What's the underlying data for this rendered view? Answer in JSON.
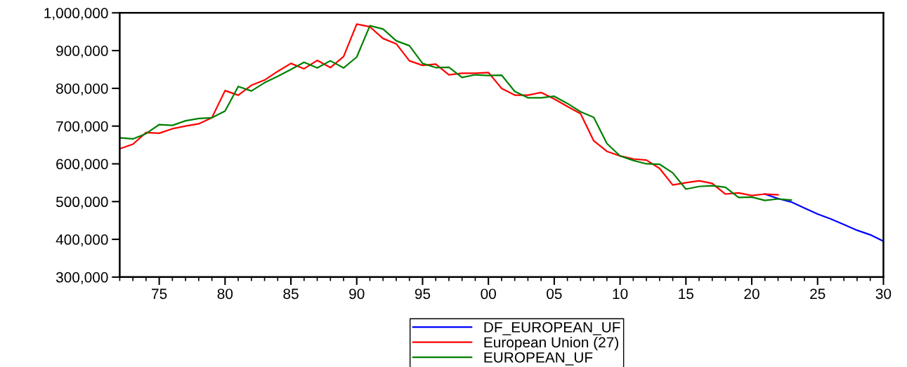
{
  "chart_data": {
    "type": "line",
    "x": [
      1972,
      1973,
      1974,
      1975,
      1976,
      1977,
      1978,
      1979,
      1980,
      1981,
      1982,
      1983,
      1984,
      1985,
      1986,
      1987,
      1988,
      1989,
      1990,
      1991,
      1992,
      1993,
      1994,
      1995,
      1996,
      1997,
      1998,
      1999,
      2000,
      2001,
      2002,
      2003,
      2004,
      2005,
      2006,
      2007,
      2008,
      2009,
      2010,
      2011,
      2012,
      2013,
      2014,
      2015,
      2016,
      2017,
      2018,
      2019,
      2020,
      2021,
      2022,
      2023
    ],
    "series": [
      {
        "name": "DF_EUROPEAN_UF",
        "color": "#0000ff",
        "x": [
          2021,
          2022,
          2023,
          2024,
          2025,
          2026,
          2027,
          2028,
          2029,
          2030
        ],
        "values": [
          520000,
          508000,
          499000,
          483000,
          467000,
          454000,
          439000,
          424000,
          412000,
          395000
        ]
      },
      {
        "name": "European Union (27)",
        "color": "#ff0000",
        "values": [
          640000,
          652000,
          683000,
          681000,
          693000,
          700000,
          706000,
          722000,
          794000,
          782000,
          808000,
          822000,
          845000,
          866000,
          852000,
          874000,
          855000,
          884000,
          970000,
          963000,
          932000,
          918000,
          873000,
          861000,
          864000,
          836000,
          840000,
          840000,
          842000,
          800000,
          782000,
          782000,
          789000,
          772000,
          752000,
          733000,
          661000,
          633000,
          621000,
          613000,
          610000,
          588000,
          544000,
          550000,
          555000,
          548000,
          520000,
          523000,
          516000,
          520000,
          518000,
          null
        ]
      },
      {
        "name": "EUROPEAN_UF",
        "color": "#008000",
        "values": [
          669000,
          666000,
          680000,
          704000,
          702000,
          714000,
          720000,
          722000,
          740000,
          805000,
          793000,
          815000,
          832000,
          850000,
          869000,
          854000,
          873000,
          854000,
          883000,
          966000,
          957000,
          926000,
          913000,
          866000,
          855000,
          856000,
          829000,
          836000,
          834000,
          835000,
          792000,
          775000,
          775000,
          779000,
          760000,
          738000,
          723000,
          654000,
          621000,
          609000,
          600000,
          599000,
          576000,
          533000,
          540000,
          542000,
          538000,
          511000,
          512000,
          503000,
          507000,
          504000
        ]
      }
    ],
    "xlim": [
      1972,
      2030
    ],
    "xticks": [
      {
        "value": 1972,
        "label": null
      },
      {
        "value": 1973,
        "label": null
      },
      {
        "value": 1974,
        "label": null
      },
      {
        "value": 1975,
        "label": "75"
      },
      {
        "value": 1976,
        "label": null
      },
      {
        "value": 1977,
        "label": null
      },
      {
        "value": 1978,
        "label": null
      },
      {
        "value": 1979,
        "label": null
      },
      {
        "value": 1980,
        "label": "80"
      },
      {
        "value": 1981,
        "label": null
      },
      {
        "value": 1982,
        "label": null
      },
      {
        "value": 1983,
        "label": null
      },
      {
        "value": 1984,
        "label": null
      },
      {
        "value": 1985,
        "label": "85"
      },
      {
        "value": 1986,
        "label": null
      },
      {
        "value": 1987,
        "label": null
      },
      {
        "value": 1988,
        "label": null
      },
      {
        "value": 1989,
        "label": null
      },
      {
        "value": 1990,
        "label": "90"
      },
      {
        "value": 1991,
        "label": null
      },
      {
        "value": 1992,
        "label": null
      },
      {
        "value": 1993,
        "label": null
      },
      {
        "value": 1994,
        "label": null
      },
      {
        "value": 1995,
        "label": "95"
      },
      {
        "value": 1996,
        "label": null
      },
      {
        "value": 1997,
        "label": null
      },
      {
        "value": 1998,
        "label": null
      },
      {
        "value": 1999,
        "label": null
      },
      {
        "value": 2000,
        "label": "00"
      },
      {
        "value": 2001,
        "label": null
      },
      {
        "value": 2002,
        "label": null
      },
      {
        "value": 2003,
        "label": null
      },
      {
        "value": 2004,
        "label": null
      },
      {
        "value": 2005,
        "label": "05"
      },
      {
        "value": 2006,
        "label": null
      },
      {
        "value": 2007,
        "label": null
      },
      {
        "value": 2008,
        "label": null
      },
      {
        "value": 2009,
        "label": null
      },
      {
        "value": 2010,
        "label": "10"
      },
      {
        "value": 2011,
        "label": null
      },
      {
        "value": 2012,
        "label": null
      },
      {
        "value": 2013,
        "label": null
      },
      {
        "value": 2014,
        "label": null
      },
      {
        "value": 2015,
        "label": "15"
      },
      {
        "value": 2016,
        "label": null
      },
      {
        "value": 2017,
        "label": null
      },
      {
        "value": 2018,
        "label": null
      },
      {
        "value": 2019,
        "label": null
      },
      {
        "value": 2020,
        "label": "20"
      },
      {
        "value": 2021,
        "label": null
      },
      {
        "value": 2022,
        "label": null
      },
      {
        "value": 2023,
        "label": null
      },
      {
        "value": 2024,
        "label": null
      },
      {
        "value": 2025,
        "label": "25"
      },
      {
        "value": 2026,
        "label": null
      },
      {
        "value": 2027,
        "label": null
      },
      {
        "value": 2028,
        "label": null
      },
      {
        "value": 2029,
        "label": null
      },
      {
        "value": 2030,
        "label": "30"
      }
    ],
    "ylim": [
      300000,
      1000000
    ],
    "yticks": [
      {
        "value": 300000,
        "label": "300,000"
      },
      {
        "value": 400000,
        "label": "400,000"
      },
      {
        "value": 500000,
        "label": "500,000"
      },
      {
        "value": 600000,
        "label": "600,000"
      },
      {
        "value": 700000,
        "label": "700,000"
      },
      {
        "value": 800000,
        "label": "800,000"
      },
      {
        "value": 900000,
        "label": "900,000"
      },
      {
        "value": 1000000,
        "label": "1,000,000"
      }
    ],
    "grid": false,
    "legend": "bottom",
    "marker": "none",
    "line_style": "solid"
  }
}
